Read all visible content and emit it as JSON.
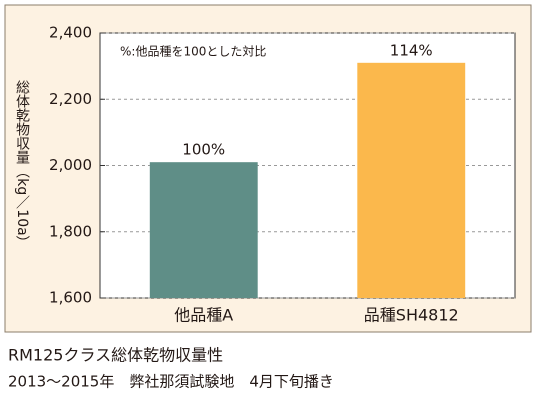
{
  "chart_data": {
    "type": "bar",
    "title": "RM125クラス総体乾物収量性",
    "subtitle": "2013～2015年　弊社那須試験地　4月下旬播き",
    "y_label": "総体乾物収量（kg／10a）",
    "note": "%:他品種を100とした対比",
    "categories": [
      "他品種A",
      "品種SH4812"
    ],
    "values": [
      2010,
      2310
    ],
    "bar_annotations": [
      "100%",
      "114%"
    ],
    "colors": [
      "#5f8e87",
      "#fbb84c"
    ],
    "ylim": [
      1600,
      2400
    ],
    "yticks": [
      {
        "value": 1600,
        "label": "1,600"
      },
      {
        "value": 1800,
        "label": "1,800"
      },
      {
        "value": 2000,
        "label": "2,000"
      },
      {
        "value": 2200,
        "label": "2,200"
      },
      {
        "value": 2400,
        "label": "2,400"
      }
    ],
    "grid": true
  }
}
